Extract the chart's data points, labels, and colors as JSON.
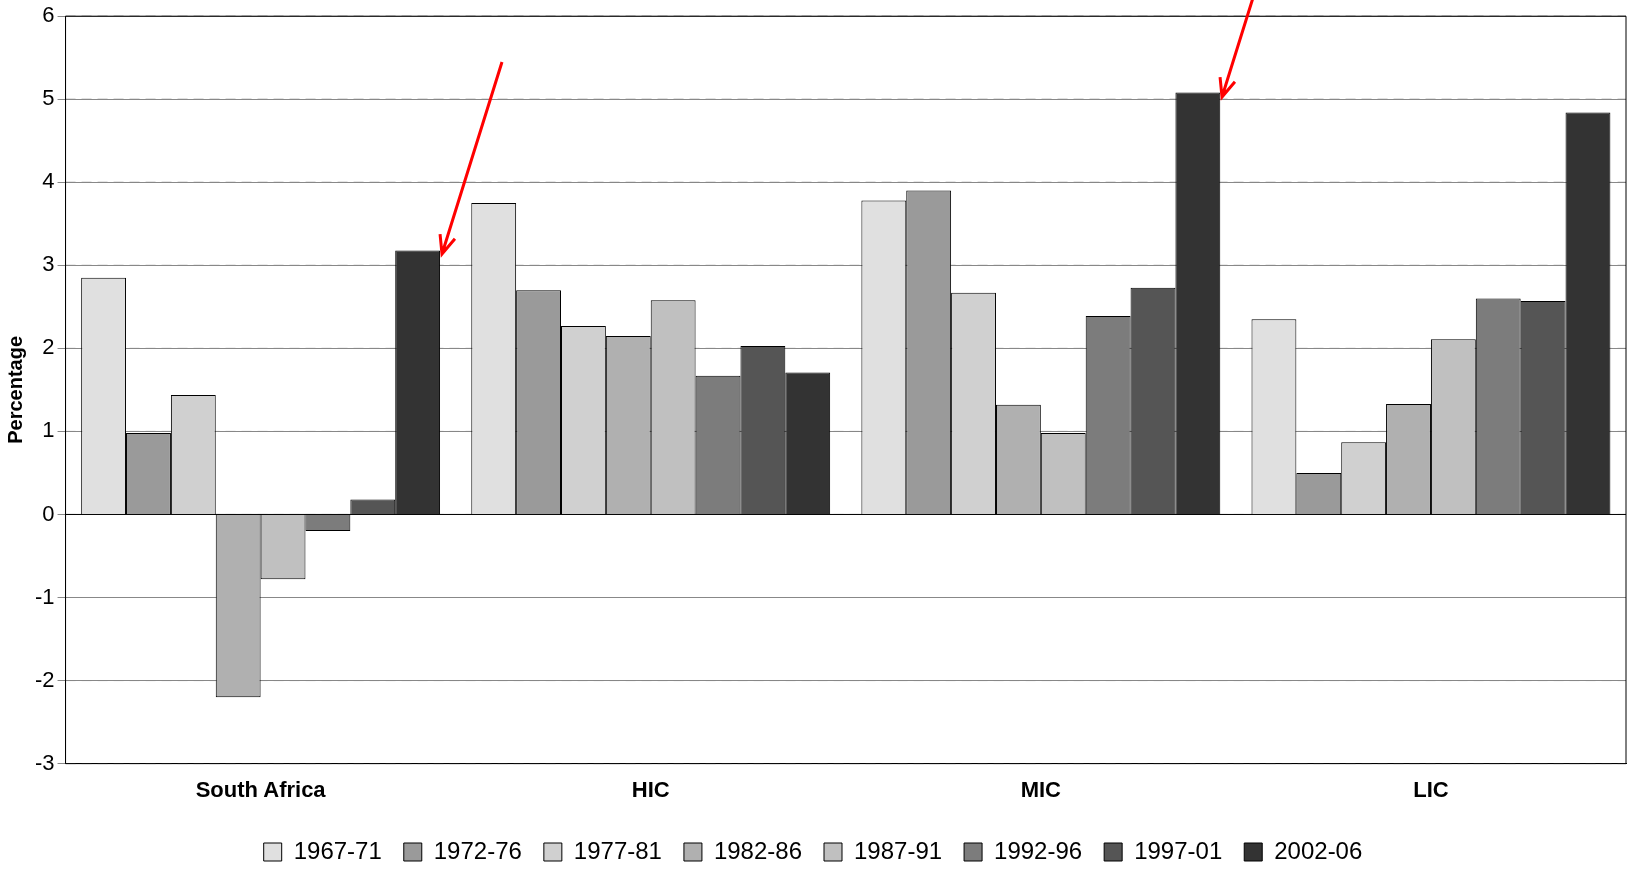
{
  "chart_data": {
    "type": "bar",
    "ylabel": "Percentage",
    "categories": [
      "South Africa",
      "HIC",
      "MIC",
      "LIC"
    ],
    "series": [
      {
        "name": "1967-71",
        "color": "#e0e0e0",
        "values": [
          2.85,
          3.75,
          3.78,
          2.35
        ]
      },
      {
        "name": "1972-76",
        "color": "#9a9a9a",
        "values": [
          0.98,
          2.7,
          3.9,
          0.5
        ]
      },
      {
        "name": "1977-81",
        "color": "#d0d0d0",
        "values": [
          1.44,
          2.27,
          2.67,
          0.87
        ]
      },
      {
        "name": "1982-86",
        "color": "#b0b0b0",
        "values": [
          -2.2,
          2.15,
          1.32,
          1.33
        ]
      },
      {
        "name": "1987-91",
        "color": "#c0c0c0",
        "values": [
          -0.78,
          2.58,
          0.98,
          2.11
        ]
      },
      {
        "name": "1992-96",
        "color": "#7c7c7c",
        "values": [
          -0.2,
          1.67,
          2.39,
          2.6
        ]
      },
      {
        "name": "1997-01",
        "color": "#555555",
        "values": [
          0.18,
          2.03,
          2.73,
          2.57
        ]
      },
      {
        "name": "2002-06",
        "color": "#333333",
        "values": [
          3.18,
          1.71,
          5.08,
          4.84
        ]
      }
    ],
    "ylim": [
      -3,
      6
    ],
    "yticks": [
      -3,
      -2,
      -1,
      0,
      1,
      2,
      3,
      4,
      5,
      6
    ],
    "grid": "y",
    "legend": "bottom"
  }
}
